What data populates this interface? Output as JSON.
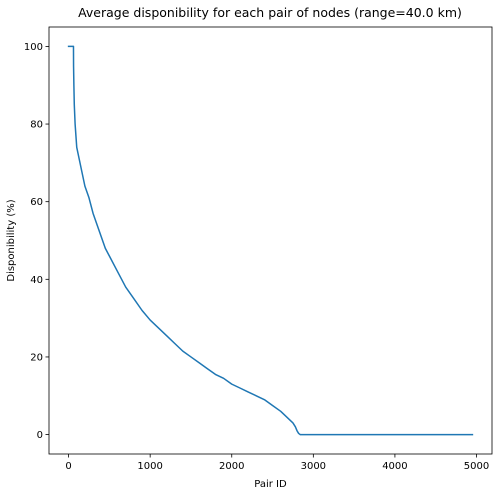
{
  "chart_data": {
    "type": "line",
    "title": "Average disponibility for each pair of nodes (range=40.0 km)",
    "xlabel": "Pair ID",
    "ylabel": "Disponibility (%)",
    "xlim": [
      -240,
      5190
    ],
    "ylim": [
      -5,
      105
    ],
    "xticks": [
      0,
      1000,
      2000,
      3000,
      4000,
      5000
    ],
    "xtick_labels": [
      "0",
      "1000",
      "2000",
      "3000",
      "4000",
      "5000"
    ],
    "yticks": [
      0,
      20,
      40,
      60,
      80,
      100
    ],
    "ytick_labels": [
      "0",
      "20",
      "40",
      "60",
      "80",
      "100"
    ],
    "grid": false,
    "series": [
      {
        "color": "#1f77b4",
        "x": [
          0,
          60,
          61,
          65,
          70,
          80,
          90,
          100,
          130,
          160,
          200,
          250,
          300,
          350,
          400,
          450,
          500,
          600,
          700,
          800,
          900,
          1000,
          1100,
          1200,
          1300,
          1400,
          1500,
          1600,
          1700,
          1800,
          1900,
          2000,
          2100,
          2200,
          2300,
          2400,
          2500,
          2600,
          2650,
          2700,
          2750,
          2780,
          2800,
          2820,
          2840,
          2850,
          4950
        ],
        "y": [
          100,
          100,
          95,
          90,
          85,
          80,
          77,
          74,
          71,
          68,
          64,
          61,
          57,
          54,
          51,
          48,
          46,
          42,
          38,
          35,
          32,
          29.5,
          27.5,
          25.5,
          23.5,
          21.5,
          20,
          18.5,
          17,
          15.5,
          14.5,
          13,
          12,
          11,
          10,
          9,
          7.5,
          6,
          5,
          4,
          3,
          2,
          1,
          0.3,
          0,
          0,
          0
        ]
      }
    ]
  }
}
